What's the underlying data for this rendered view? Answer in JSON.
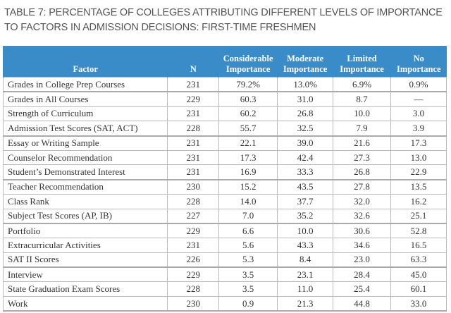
{
  "title": "TABLE 7: PERCENTAGE OF COLLEGES ATTRIBUTING DIFFERENT LEVELS OF IMPORTANCE TO FACTORS IN ADMISSION DECISIONS: FIRST-TIME FRESHMEN",
  "header_color": "#3a8cc9",
  "columns": [
    "Factor",
    "N",
    "Considerable Importance",
    "Moderate Importance",
    "Limited Importance",
    "No Importance"
  ],
  "rows": [
    [
      "Grades in College Prep Courses",
      "231",
      "79.2%",
      "13.0%",
      "6.9%",
      "0.9%"
    ],
    [
      "Grades in All Courses",
      "229",
      "60.3",
      "31.0",
      "8.7",
      "—"
    ],
    [
      "Strength of Curriculum",
      "231",
      "60.2",
      "26.8",
      "10.0",
      "3.0"
    ],
    [
      "Admission Test Scores (SAT, ACT)",
      "228",
      "55.7",
      "32.5",
      "7.9",
      "3.9"
    ],
    [
      "Essay or Writing Sample",
      "231",
      "22.1",
      "39.0",
      "21.6",
      "17.3"
    ],
    [
      "Counselor Recommendation",
      "231",
      "17.3",
      "42.4",
      "27.3",
      "13.0"
    ],
    [
      "Student’s Demonstrated Interest",
      "231",
      "16.9",
      "33.3",
      "26.8",
      "22.9"
    ],
    [
      "Teacher Recommendation",
      "230",
      "15.2",
      "43.5",
      "27.8",
      "13.5"
    ],
    [
      "Class Rank",
      "228",
      "14.0",
      "37.7",
      "32.0",
      "16.2"
    ],
    [
      "Subject Test Scores (AP, IB)",
      "227",
      "7.0",
      "35.2",
      "32.6",
      "25.1"
    ],
    [
      "Portfolio",
      "229",
      "6.6",
      "10.0",
      "30.6",
      "52.8"
    ],
    [
      "Extracurricular Activities",
      "231",
      "5.6",
      "43.3",
      "34.6",
      "16.5"
    ],
    [
      "SAT II Scores",
      "226",
      "5.3",
      "8.4",
      "23.0",
      "63.3"
    ],
    [
      "Interview",
      "229",
      "3.5",
      "23.1",
      "28.4",
      "45.0"
    ],
    [
      "State Graduation Exam Scores",
      "228",
      "3.5",
      "11.0",
      "25.4",
      "60.1"
    ],
    [
      "Work",
      "230",
      "0.9",
      "21.3",
      "44.8",
      "33.0"
    ]
  ]
}
